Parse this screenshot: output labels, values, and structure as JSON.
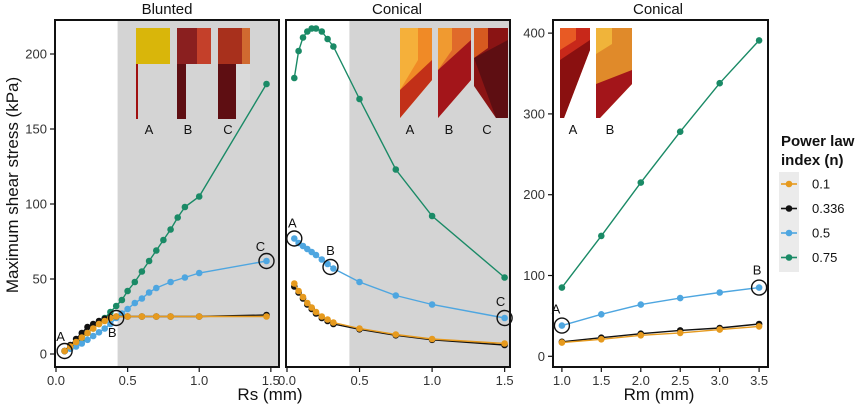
{
  "ylabel": "Maximum shear stress (kPa)",
  "legend": {
    "title_line1": "Power law",
    "title_line2": "index (n)",
    "placement": "right",
    "entries": [
      {
        "label": "0.1",
        "color": "#e69a1e"
      },
      {
        "label": "0.336",
        "color": "#111111"
      },
      {
        "label": "0.5",
        "color": "#4ea6e0"
      },
      {
        "label": "0.75",
        "color": "#1a8a66"
      }
    ]
  },
  "chart_data": [
    {
      "type": "line",
      "title": "Blunted",
      "xlabel": "Rs (mm)",
      "ylabel": "Maximum shear stress (kPa)",
      "xlim": [
        0,
        1.55
      ],
      "ylim": [
        -8,
        222
      ],
      "xticks": [
        0.0,
        0.5,
        1.0,
        1.5
      ],
      "xticklabels": [
        "0.0",
        "0.5",
        "1.0",
        "1.5"
      ],
      "yticks": [
        0,
        50,
        100,
        150,
        200
      ],
      "yticklabels": [
        "0",
        "50",
        "100",
        "150",
        "200"
      ],
      "shaded_region": [
        0.43,
        1.55
      ],
      "series": [
        {
          "name": "0.1",
          "x": [
            0.06,
            0.1,
            0.14,
            0.18,
            0.22,
            0.26,
            0.3,
            0.34,
            0.38,
            0.42,
            0.5,
            0.6,
            0.7,
            0.8,
            1.0,
            1.47
          ],
          "y": [
            2,
            5,
            8,
            11,
            14,
            17,
            20,
            22,
            24,
            25,
            25,
            25,
            25,
            25,
            25,
            25
          ]
        },
        {
          "name": "0.336",
          "x": [
            0.06,
            0.1,
            0.14,
            0.18,
            0.22,
            0.26,
            0.3,
            0.34,
            0.38,
            0.42,
            0.5,
            0.6,
            0.7,
            0.8,
            1.0,
            1.47
          ],
          "y": [
            2,
            6,
            10,
            14,
            18,
            20,
            22,
            23.5,
            24.5,
            25,
            25,
            25,
            25,
            25,
            25,
            26
          ]
        },
        {
          "name": "0.5",
          "x": [
            0.06,
            0.1,
            0.14,
            0.18,
            0.22,
            0.26,
            0.3,
            0.34,
            0.38,
            0.42,
            0.46,
            0.5,
            0.55,
            0.6,
            0.65,
            0.7,
            0.8,
            0.9,
            1.0,
            1.47
          ],
          "y": [
            2,
            3.5,
            5,
            7,
            9.5,
            12,
            14.5,
            17,
            20,
            24,
            27,
            30,
            34,
            37,
            41,
            44,
            48,
            51,
            54,
            62
          ]
        },
        {
          "name": "0.75",
          "x": [
            0.06,
            0.1,
            0.14,
            0.18,
            0.22,
            0.26,
            0.3,
            0.34,
            0.38,
            0.42,
            0.46,
            0.5,
            0.55,
            0.6,
            0.65,
            0.7,
            0.75,
            0.8,
            0.85,
            0.9,
            1.0,
            1.47
          ],
          "y": [
            2,
            4,
            7,
            10,
            14,
            17,
            20,
            24,
            28,
            32,
            36,
            42,
            48,
            55,
            62,
            69,
            76,
            83,
            91,
            98,
            105,
            180
          ]
        }
      ],
      "circles": [
        {
          "label": "A",
          "x": 0.06,
          "y": 2
        },
        {
          "label": "B",
          "x": 0.42,
          "y": 24
        },
        {
          "label": "C",
          "x": 1.47,
          "y": 62
        }
      ],
      "inset_labels": [
        "A",
        "B",
        "C"
      ]
    },
    {
      "type": "line",
      "title": "Conical",
      "xlabel": "",
      "xlim": [
        0,
        1.53
      ],
      "ylim": [
        -8,
        222
      ],
      "xticks": [
        0.0,
        0.5,
        1.0,
        1.5
      ],
      "xticklabels": [
        "0.0",
        "0.5",
        "1.0",
        "1.5"
      ],
      "shaded_region": [
        0.43,
        1.53
      ],
      "series": [
        {
          "name": "0.1",
          "x": [
            0.05,
            0.08,
            0.11,
            0.14,
            0.17,
            0.2,
            0.24,
            0.28,
            0.32,
            0.5,
            0.75,
            1.0,
            1.5
          ],
          "y": [
            47,
            42,
            38,
            34,
            31,
            28,
            25,
            23,
            21,
            17,
            13,
            10,
            7
          ]
        },
        {
          "name": "0.336",
          "x": [
            0.05,
            0.08,
            0.11,
            0.14,
            0.17,
            0.2,
            0.24,
            0.28,
            0.32,
            0.5,
            0.75,
            1.0,
            1.5
          ],
          "y": [
            45,
            41,
            37,
            33,
            30,
            27,
            24,
            22,
            20,
            16.5,
            12.5,
            9.5,
            6
          ]
        },
        {
          "name": "0.5",
          "x": [
            0.05,
            0.08,
            0.11,
            0.14,
            0.17,
            0.2,
            0.24,
            0.28,
            0.32,
            0.5,
            0.75,
            1.0,
            1.5
          ],
          "y": [
            77,
            74,
            72,
            70,
            68,
            66,
            63,
            60,
            57,
            48,
            39,
            33,
            24
          ]
        },
        {
          "name": "0.75",
          "x": [
            0.05,
            0.08,
            0.11,
            0.14,
            0.17,
            0.2,
            0.24,
            0.28,
            0.32,
            0.5,
            0.75,
            1.0,
            1.5
          ],
          "y": [
            184,
            202,
            211,
            215,
            217,
            217,
            215,
            210,
            205,
            170,
            123,
            92,
            51
          ]
        }
      ],
      "circles": [
        {
          "label": "A",
          "x": 0.05,
          "y": 77
        },
        {
          "label": "B",
          "x": 0.3,
          "y": 58
        },
        {
          "label": "C",
          "x": 1.5,
          "y": 24
        }
      ],
      "inset_labels": [
        "A",
        "B",
        "C"
      ]
    },
    {
      "type": "line",
      "title": "Conical",
      "xlabel": "Rm (mm)",
      "xlim": [
        0.9,
        3.6
      ],
      "ylim": [
        -12,
        415
      ],
      "xticks": [
        1.0,
        1.5,
        2.0,
        2.5,
        3.0,
        3.5
      ],
      "xticklabels": [
        "1.0",
        "1.5",
        "2.0",
        "2.5",
        "3.0",
        "3.5"
      ],
      "yticks": [
        0,
        100,
        200,
        300,
        400
      ],
      "yticklabels": [
        "0",
        "100",
        "200",
        "300",
        "400"
      ],
      "series": [
        {
          "name": "0.1",
          "x": [
            1.0,
            1.5,
            2.0,
            2.5,
            3.0,
            3.5
          ],
          "y": [
            17,
            21,
            26,
            29,
            33,
            37
          ]
        },
        {
          "name": "0.336",
          "x": [
            1.0,
            1.5,
            2.0,
            2.5,
            3.0,
            3.5
          ],
          "y": [
            18,
            23,
            28,
            32,
            35,
            40
          ]
        },
        {
          "name": "0.5",
          "x": [
            1.0,
            1.5,
            2.0,
            2.5,
            3.0,
            3.5
          ],
          "y": [
            38,
            52,
            64,
            72,
            79,
            85
          ]
        },
        {
          "name": "0.75",
          "x": [
            1.0,
            1.5,
            2.0,
            2.5,
            3.0,
            3.5
          ],
          "y": [
            85,
            149,
            215,
            278,
            338,
            391
          ]
        }
      ],
      "circles": [
        {
          "label": "A",
          "x": 1.0,
          "y": 38
        },
        {
          "label": "B",
          "x": 3.5,
          "y": 85
        }
      ],
      "inset_labels": [
        "A",
        "B"
      ]
    }
  ]
}
